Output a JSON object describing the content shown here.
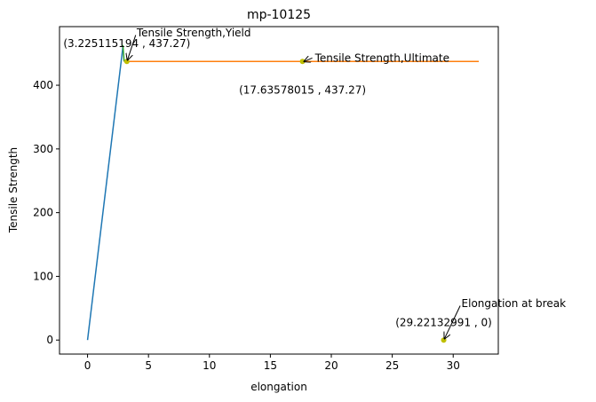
{
  "chart_data": {
    "type": "line",
    "title": "mp-10125",
    "xlabel": "elongation",
    "ylabel": "Tensile Strength",
    "xlim": [
      -2.3,
      33.7
    ],
    "ylim": [
      -22,
      492
    ],
    "xticks": [
      0,
      5,
      10,
      15,
      20,
      25,
      30
    ],
    "yticks": [
      0,
      100,
      200,
      300,
      400
    ],
    "grid": false,
    "series": [
      {
        "color": "#1f77b4",
        "x": [
          0,
          2.9
        ],
        "y": [
          0,
          460
        ]
      },
      {
        "color": "#2ca02c",
        "x": [
          2.9,
          3.0
        ],
        "y": [
          463,
          437.27
        ]
      },
      {
        "color": "#ff7f0e",
        "x": [
          3.0,
          32.1
        ],
        "y": [
          437.27,
          437.27
        ]
      }
    ],
    "points": [
      {
        "x": 3.225115194,
        "y": 437.27,
        "color": "#bfbf00"
      },
      {
        "x": 17.63578015,
        "y": 437.27,
        "color": "#bfbf00"
      },
      {
        "x": 29.22132991,
        "y": 0,
        "color": "#bfbf00"
      }
    ],
    "annotations": [
      {
        "label": "Tensile Strength,Yield",
        "value": "(3.225115194 , 437.27)",
        "x": 3.225115194,
        "y": 437.27,
        "text_x": 3.225115194,
        "text_y": 477,
        "value_y": 460,
        "label_dx": 11
      },
      {
        "label": "Tensile Strength,Ultimate",
        "value": "(17.63578015 , 437.27)",
        "x": 17.63578015,
        "y": 437.27,
        "text_x": 17.63578015,
        "text_y": 437.27,
        "value_y": 387,
        "label_dx": 14
      },
      {
        "label": "Elongation at break",
        "value": "(29.22132991 , 0)",
        "x": 29.22132991,
        "y": 0,
        "text_x": 29.22132991,
        "text_y": 52,
        "value_y": 22,
        "label_dx": 20
      }
    ]
  }
}
